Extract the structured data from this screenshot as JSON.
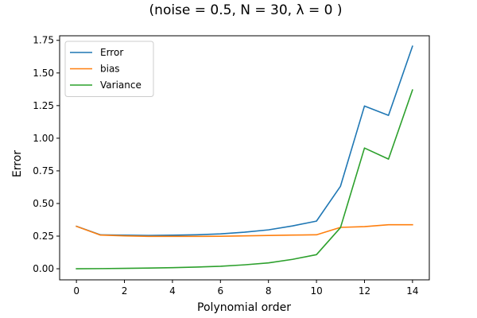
{
  "chart_data": {
    "type": "line",
    "title": "(noise = 0.5, N = 30, λ = 0 )",
    "xlabel": "Polynomial order",
    "ylabel": "Error",
    "xlim": [
      -0.7,
      14.7
    ],
    "ylim": [
      -0.085,
      1.785
    ],
    "xticks": [
      0,
      2,
      4,
      6,
      8,
      10,
      12,
      14
    ],
    "yticks": [
      0.0,
      0.25,
      0.5,
      0.75,
      1.0,
      1.25,
      1.5,
      1.75
    ],
    "xtick_labels": [
      "0",
      "2",
      "4",
      "6",
      "8",
      "10",
      "12",
      "14"
    ],
    "ytick_labels": [
      "0.00",
      "0.25",
      "0.50",
      "0.75",
      "1.00",
      "1.25",
      "1.50",
      "1.75"
    ],
    "grid": false,
    "legend_position": "top-left",
    "x": [
      0,
      1,
      2,
      3,
      4,
      5,
      6,
      7,
      8,
      9,
      10,
      11,
      12,
      13,
      14
    ],
    "series": [
      {
        "name": "Error",
        "color": "#1f77b4",
        "values": [
          0.325,
          0.26,
          0.257,
          0.255,
          0.257,
          0.26,
          0.267,
          0.28,
          0.298,
          0.328,
          0.365,
          0.632,
          1.247,
          1.175,
          1.705
        ]
      },
      {
        "name": "bias",
        "color": "#ff7f0e",
        "values": [
          0.325,
          0.258,
          0.252,
          0.248,
          0.248,
          0.248,
          0.249,
          0.252,
          0.255,
          0.258,
          0.26,
          0.317,
          0.323,
          0.337,
          0.337
        ]
      },
      {
        "name": "Variance",
        "color": "#2ca02c",
        "values": [
          0.0,
          0.001,
          0.003,
          0.005,
          0.008,
          0.013,
          0.019,
          0.03,
          0.045,
          0.072,
          0.108,
          0.315,
          0.925,
          0.84,
          1.37
        ]
      }
    ]
  }
}
